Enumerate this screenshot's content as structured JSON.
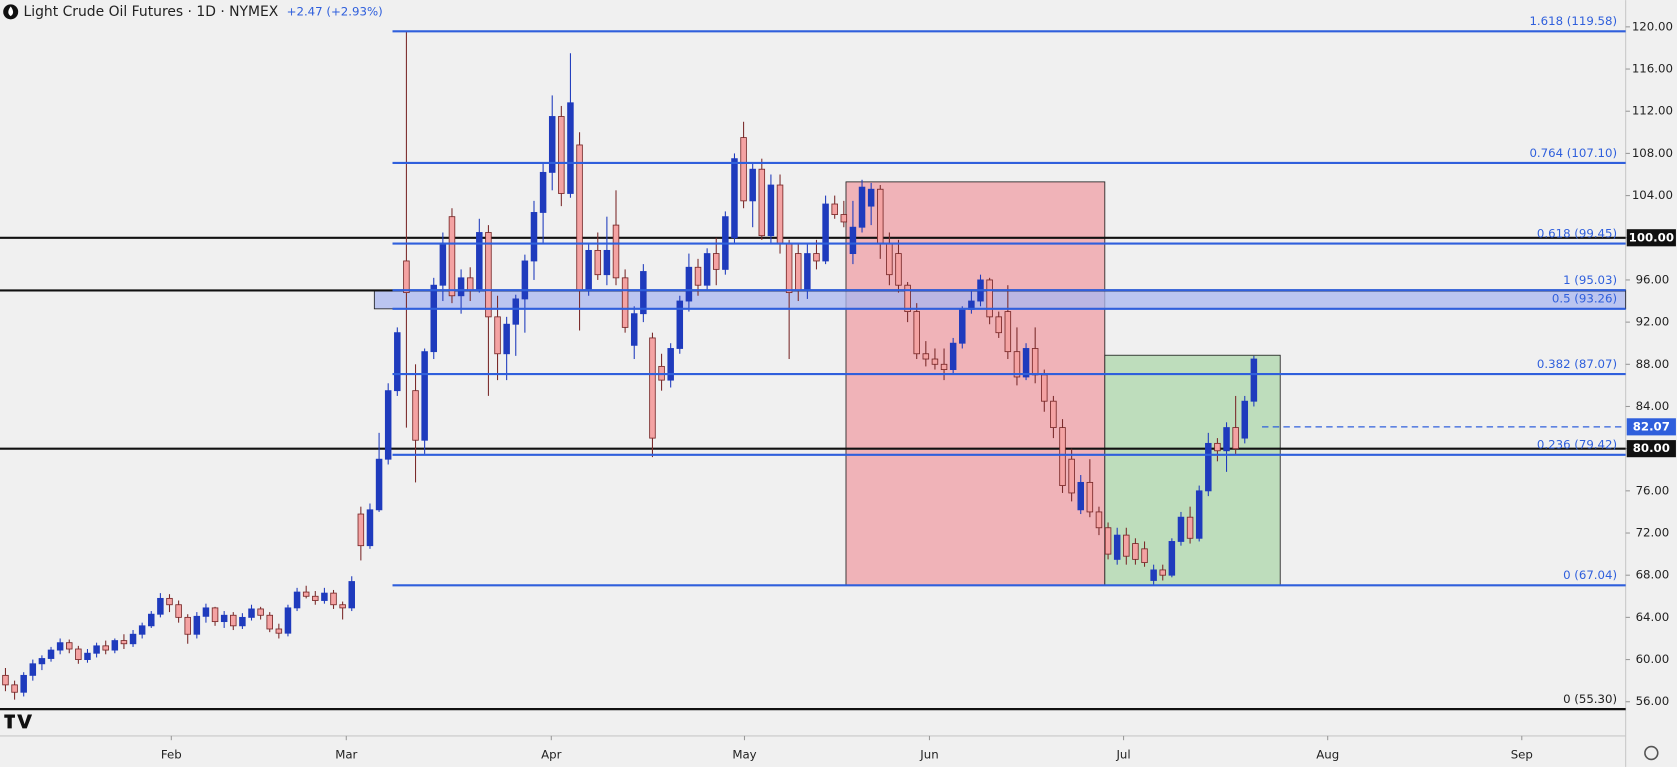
{
  "chart_data": {
    "type": "candlestick",
    "title": "Light Crude Oil Futures · 1D · NYMEX",
    "subtitle": "+2.47 (+2.93%)",
    "xlim": [
      -0.6,
      177.8
    ],
    "xticks": [
      {
        "value": 18.2,
        "label": "Feb"
      },
      {
        "value": 37.4,
        "label": "Mar"
      },
      {
        "value": 59.9,
        "label": "Apr"
      },
      {
        "value": 81.1,
        "label": "May"
      },
      {
        "value": 101.4,
        "label": "Jun"
      },
      {
        "value": 122.7,
        "label": "Jul"
      },
      {
        "value": 145.1,
        "label": "Aug"
      },
      {
        "value": 166.4,
        "label": "Sep"
      }
    ],
    "ylim": [
      52.76,
      122.54
    ],
    "yticks": [
      {
        "value": 56,
        "label": "56.00"
      },
      {
        "value": 60,
        "label": "60.00"
      },
      {
        "value": 64,
        "label": "64.00"
      },
      {
        "value": 68,
        "label": "68.00"
      },
      {
        "value": 72,
        "label": "72.00"
      },
      {
        "value": 76,
        "label": "76.00"
      },
      {
        "value": 80,
        "label": "80.00"
      },
      {
        "value": 84,
        "label": "84.00"
      },
      {
        "value": 88,
        "label": "88.00"
      },
      {
        "value": 92,
        "label": "92.00"
      },
      {
        "value": 96,
        "label": "96.00"
      },
      {
        "value": 100,
        "label": "100.00"
      },
      {
        "value": 104,
        "label": "104.00"
      },
      {
        "value": 108,
        "label": "108.00"
      },
      {
        "value": 112,
        "label": "112.00"
      },
      {
        "value": 116,
        "label": "116.00"
      },
      {
        "value": 120,
        "label": "120.00"
      }
    ],
    "zones": [
      {
        "top": 105.3,
        "bottom": 67.04,
        "color": "#f0a8ae"
      },
      {
        "top": 88.86,
        "bottom": 67.04,
        "color": "#b5d9b3"
      }
    ],
    "band": {
      "top": 95.03,
      "bottom": 93.26,
      "color": "#a9b7f0"
    },
    "fib_levels": [
      {
        "value": 119.58,
        "label": "1.618 (119.58)",
        "color": "#2f5fdc"
      },
      {
        "value": 107.1,
        "label": "0.764 (107.10)",
        "color": "#2f5fdc"
      },
      {
        "value": 99.45,
        "label": "0.618 (99.45)",
        "color": "#2f5fdc"
      },
      {
        "value": 95.03,
        "label": "1 (95.03)",
        "color": "#2f5fdc"
      },
      {
        "value": 93.26,
        "label": "0.5 (93.26)",
        "color": "#2f5fdc"
      },
      {
        "value": 87.07,
        "label": "0.382 (87.07)",
        "color": "#2f5fdc"
      },
      {
        "value": 79.42,
        "label": "0.236 (79.42)",
        "color": "#2f5fdc"
      },
      {
        "value": 67.04,
        "label": "0 (67.04)",
        "color": "#2f5fdc"
      },
      {
        "value": 55.3,
        "label": "0 (55.30)",
        "color": "#111111"
      }
    ],
    "levels": [
      {
        "value": 100,
        "label": "100.00"
      },
      {
        "value": 95
      },
      {
        "value": 80,
        "label": "80.00"
      }
    ],
    "last_price": {
      "value": 82.07,
      "label": "82.07",
      "color": "#2f5fdc"
    },
    "series": [
      {
        "up_color": "#1f3bbd",
        "down_color": "#f4a3a3",
        "down_edge": "#7a2a2a",
        "values": [
          [
            58.5,
            59.2,
            57.0,
            57.6
          ],
          [
            57.6,
            58.0,
            56.2,
            56.9
          ],
          [
            56.9,
            58.8,
            56.5,
            58.5
          ],
          [
            58.5,
            60.0,
            58.0,
            59.6
          ],
          [
            59.6,
            60.4,
            59.0,
            60.1
          ],
          [
            60.1,
            61.2,
            59.8,
            60.9
          ],
          [
            60.9,
            62.0,
            60.5,
            61.6
          ],
          [
            61.6,
            61.9,
            60.6,
            61.0
          ],
          [
            61.0,
            61.3,
            59.6,
            60.0
          ],
          [
            60.0,
            61.0,
            59.7,
            60.6
          ],
          [
            60.6,
            61.6,
            60.2,
            61.3
          ],
          [
            61.3,
            61.8,
            60.5,
            60.9
          ],
          [
            60.9,
            62.0,
            60.6,
            61.8
          ],
          [
            61.8,
            62.4,
            61.0,
            61.5
          ],
          [
            61.5,
            62.8,
            61.2,
            62.4
          ],
          [
            62.4,
            63.5,
            62.0,
            63.2
          ],
          [
            63.2,
            64.6,
            63.0,
            64.3
          ],
          [
            64.3,
            66.3,
            64.0,
            65.8
          ],
          [
            65.8,
            66.2,
            64.5,
            65.2
          ],
          [
            65.2,
            65.6,
            63.5,
            64.0
          ],
          [
            64.0,
            64.3,
            61.5,
            62.4
          ],
          [
            62.4,
            64.5,
            62.0,
            64.1
          ],
          [
            64.1,
            65.3,
            63.5,
            64.9
          ],
          [
            64.9,
            65.0,
            63.2,
            63.6
          ],
          [
            63.6,
            64.6,
            63.0,
            64.2
          ],
          [
            64.2,
            64.5,
            62.8,
            63.2
          ],
          [
            63.2,
            64.4,
            62.9,
            64.0
          ],
          [
            64.0,
            65.2,
            63.7,
            64.8
          ],
          [
            64.8,
            65.0,
            63.8,
            64.2
          ],
          [
            64.2,
            64.5,
            62.6,
            62.9
          ],
          [
            62.9,
            63.4,
            62.0,
            62.5
          ],
          [
            62.5,
            65.2,
            62.2,
            64.9
          ],
          [
            64.9,
            66.8,
            64.6,
            66.4
          ],
          [
            66.4,
            67.0,
            65.8,
            66.0
          ],
          [
            66.0,
            66.5,
            65.2,
            65.6
          ],
          [
            65.6,
            66.8,
            65.3,
            66.3
          ],
          [
            66.3,
            66.6,
            64.8,
            65.2
          ],
          [
            65.2,
            65.5,
            63.8,
            64.9
          ],
          [
            64.9,
            67.9,
            64.6,
            67.4
          ],
          [
            73.8,
            74.5,
            69.4,
            70.8
          ],
          [
            70.8,
            74.8,
            70.5,
            74.2
          ],
          [
            74.2,
            81.5,
            74.0,
            79.0
          ],
          [
            79.0,
            86.2,
            78.5,
            85.5
          ],
          [
            85.5,
            91.5,
            85.0,
            91.0
          ],
          [
            97.8,
            119.6,
            82.0,
            94.8
          ],
          [
            85.5,
            88.0,
            76.8,
            80.8
          ],
          [
            80.8,
            89.5,
            79.5,
            89.2
          ],
          [
            89.2,
            96.2,
            88.5,
            95.5
          ],
          [
            95.5,
            100.5,
            94.0,
            99.5
          ],
          [
            102.0,
            102.8,
            93.8,
            94.5
          ],
          [
            94.5,
            97.0,
            92.8,
            96.2
          ],
          [
            96.2,
            97.2,
            94.0,
            95.0
          ],
          [
            95.0,
            101.8,
            94.8,
            100.5
          ],
          [
            100.5,
            101.2,
            85.0,
            92.5
          ],
          [
            92.5,
            94.5,
            86.5,
            89.0
          ],
          [
            89.0,
            92.5,
            86.5,
            91.8
          ],
          [
            91.8,
            94.6,
            88.8,
            94.2
          ],
          [
            94.2,
            98.4,
            91.0,
            97.8
          ],
          [
            97.8,
            103.5,
            96.0,
            102.4
          ],
          [
            102.4,
            107.0,
            99.5,
            106.2
          ],
          [
            106.2,
            113.5,
            104.5,
            111.5
          ],
          [
            111.5,
            112.5,
            103.0,
            104.2
          ],
          [
            104.2,
            117.5,
            103.8,
            112.8
          ],
          [
            108.8,
            110.0,
            91.2,
            95.0
          ],
          [
            95.0,
            99.5,
            94.5,
            98.8
          ],
          [
            98.8,
            100.5,
            96.0,
            96.5
          ],
          [
            96.5,
            102.0,
            95.5,
            98.8
          ],
          [
            101.2,
            104.5,
            95.5,
            96.2
          ],
          [
            96.2,
            97.0,
            91.0,
            91.5
          ],
          [
            89.8,
            93.5,
            88.5,
            92.8
          ],
          [
            92.8,
            97.5,
            92.0,
            96.8
          ],
          [
            90.5,
            91.0,
            79.2,
            81.0
          ],
          [
            87.8,
            89.0,
            85.5,
            86.5
          ],
          [
            86.5,
            90.0,
            85.8,
            89.5
          ],
          [
            89.5,
            94.5,
            89.0,
            94.0
          ],
          [
            94.0,
            98.5,
            93.0,
            97.2
          ],
          [
            97.2,
            98.0,
            94.5,
            95.5
          ],
          [
            95.5,
            99.0,
            95.0,
            98.5
          ],
          [
            98.5,
            100.0,
            95.5,
            97.0
          ],
          [
            97.0,
            102.5,
            96.5,
            102.0
          ],
          [
            100.0,
            108.0,
            99.5,
            107.5
          ],
          [
            109.5,
            111.0,
            102.8,
            103.5
          ],
          [
            103.5,
            107.0,
            101.0,
            106.5
          ],
          [
            106.5,
            107.5,
            99.8,
            100.2
          ],
          [
            100.2,
            106.0,
            99.5,
            105.0
          ],
          [
            105.0,
            106.0,
            98.5,
            99.5
          ],
          [
            99.5,
            99.8,
            88.5,
            94.8
          ],
          [
            98.5,
            99.5,
            94.0,
            95.0
          ],
          [
            95.0,
            99.5,
            94.2,
            98.5
          ],
          [
            98.5,
            99.8,
            97.0,
            97.8
          ],
          [
            97.8,
            104.0,
            97.5,
            103.2
          ],
          [
            103.2,
            104.0,
            101.8,
            102.2
          ],
          [
            102.2,
            103.5,
            101.0,
            101.5
          ],
          [
            98.5,
            103.5,
            97.5,
            101.0
          ],
          [
            101.0,
            105.5,
            100.5,
            104.8
          ],
          [
            103.0,
            105.2,
            101.2,
            104.6
          ],
          [
            104.6,
            105.0,
            98.0,
            99.5
          ],
          [
            99.5,
            100.5,
            95.5,
            96.5
          ],
          [
            98.5,
            99.8,
            94.8,
            95.5
          ],
          [
            95.5,
            95.8,
            92.0,
            93.0
          ],
          [
            93.0,
            93.8,
            88.5,
            89.0
          ],
          [
            89.0,
            90.2,
            87.8,
            88.5
          ],
          [
            88.5,
            89.5,
            87.5,
            88.0
          ],
          [
            88.0,
            89.5,
            86.5,
            87.5
          ],
          [
            87.5,
            90.5,
            87.0,
            90.0
          ],
          [
            90.0,
            93.5,
            89.5,
            93.2
          ],
          [
            93.2,
            95.0,
            92.8,
            94.0
          ],
          [
            94.0,
            96.5,
            93.5,
            96.0
          ],
          [
            96.0,
            96.2,
            91.8,
            92.5
          ],
          [
            92.5,
            93.0,
            90.5,
            91.0
          ],
          [
            93.0,
            95.5,
            88.5,
            89.2
          ],
          [
            89.2,
            91.5,
            86.0,
            86.8
          ],
          [
            86.8,
            90.0,
            86.5,
            89.5
          ],
          [
            89.5,
            91.5,
            86.2,
            87.0
          ],
          [
            87.0,
            87.5,
            83.5,
            84.5
          ],
          [
            84.5,
            85.0,
            81.0,
            82.0
          ],
          [
            82.0,
            82.8,
            75.8,
            76.5
          ],
          [
            79.0,
            80.0,
            75.0,
            75.8
          ],
          [
            74.2,
            77.5,
            73.8,
            76.8
          ],
          [
            76.8,
            79.0,
            73.5,
            74.0
          ],
          [
            74.0,
            74.5,
            71.8,
            72.5
          ],
          [
            72.5,
            73.0,
            69.5,
            70.0
          ],
          [
            69.5,
            72.5,
            69.0,
            71.8
          ],
          [
            71.8,
            72.5,
            69.0,
            69.8
          ],
          [
            71.0,
            71.5,
            69.0,
            69.5
          ],
          [
            70.5,
            71.2,
            68.8,
            69.2
          ],
          [
            67.5,
            69.0,
            67.0,
            68.5
          ],
          [
            68.5,
            69.0,
            67.5,
            68.0
          ],
          [
            68.0,
            71.5,
            67.8,
            71.2
          ],
          [
            71.2,
            74.0,
            70.8,
            73.5
          ],
          [
            73.5,
            74.5,
            71.0,
            71.5
          ],
          [
            71.5,
            76.5,
            71.2,
            76.0
          ],
          [
            76.0,
            81.5,
            75.5,
            80.5
          ],
          [
            80.5,
            81.0,
            78.8,
            79.8
          ],
          [
            79.8,
            82.5,
            77.8,
            82.0
          ],
          [
            82.0,
            85.0,
            79.5,
            80.0
          ],
          [
            81.0,
            85.0,
            80.5,
            84.5
          ],
          [
            84.5,
            88.8,
            84.0,
            88.5
          ]
        ]
      }
    ]
  }
}
